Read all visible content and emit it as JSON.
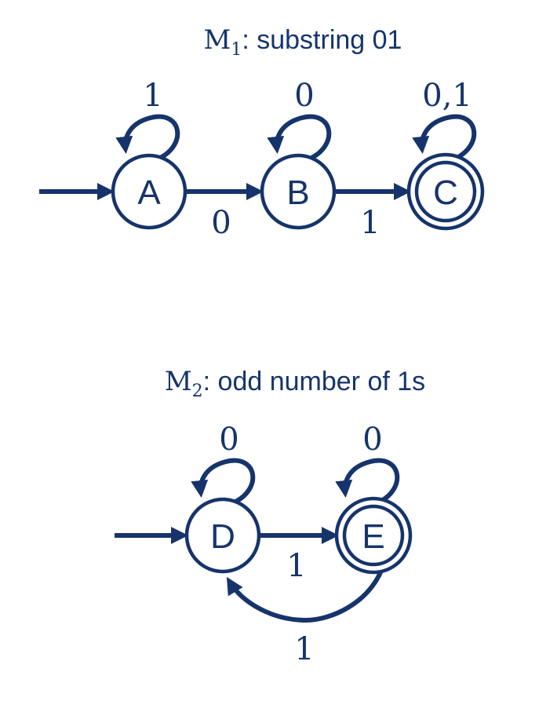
{
  "color": "#16346b",
  "machines": [
    {
      "title_m": "M",
      "title_sub": "1",
      "title_rest": ": substring 01",
      "states": [
        {
          "label": "A",
          "start": true,
          "accept": false
        },
        {
          "label": "B",
          "start": false,
          "accept": false
        },
        {
          "label": "C",
          "start": false,
          "accept": true
        }
      ],
      "transitions": [
        {
          "from": "A",
          "to": "A",
          "label": "1"
        },
        {
          "from": "B",
          "to": "B",
          "label": "0"
        },
        {
          "from": "C",
          "to": "C",
          "label": "0,1"
        },
        {
          "from": "A",
          "to": "B",
          "label": "0"
        },
        {
          "from": "B",
          "to": "C",
          "label": "1"
        }
      ]
    },
    {
      "title_m": "M",
      "title_sub": "2",
      "title_rest": ": odd number of 1s",
      "states": [
        {
          "label": "D",
          "start": true,
          "accept": false
        },
        {
          "label": "E",
          "start": false,
          "accept": true
        }
      ],
      "transitions": [
        {
          "from": "D",
          "to": "D",
          "label": "0"
        },
        {
          "from": "E",
          "to": "E",
          "label": "0"
        },
        {
          "from": "D",
          "to": "E",
          "label": "1"
        },
        {
          "from": "E",
          "to": "D",
          "label": "1"
        }
      ]
    }
  ]
}
